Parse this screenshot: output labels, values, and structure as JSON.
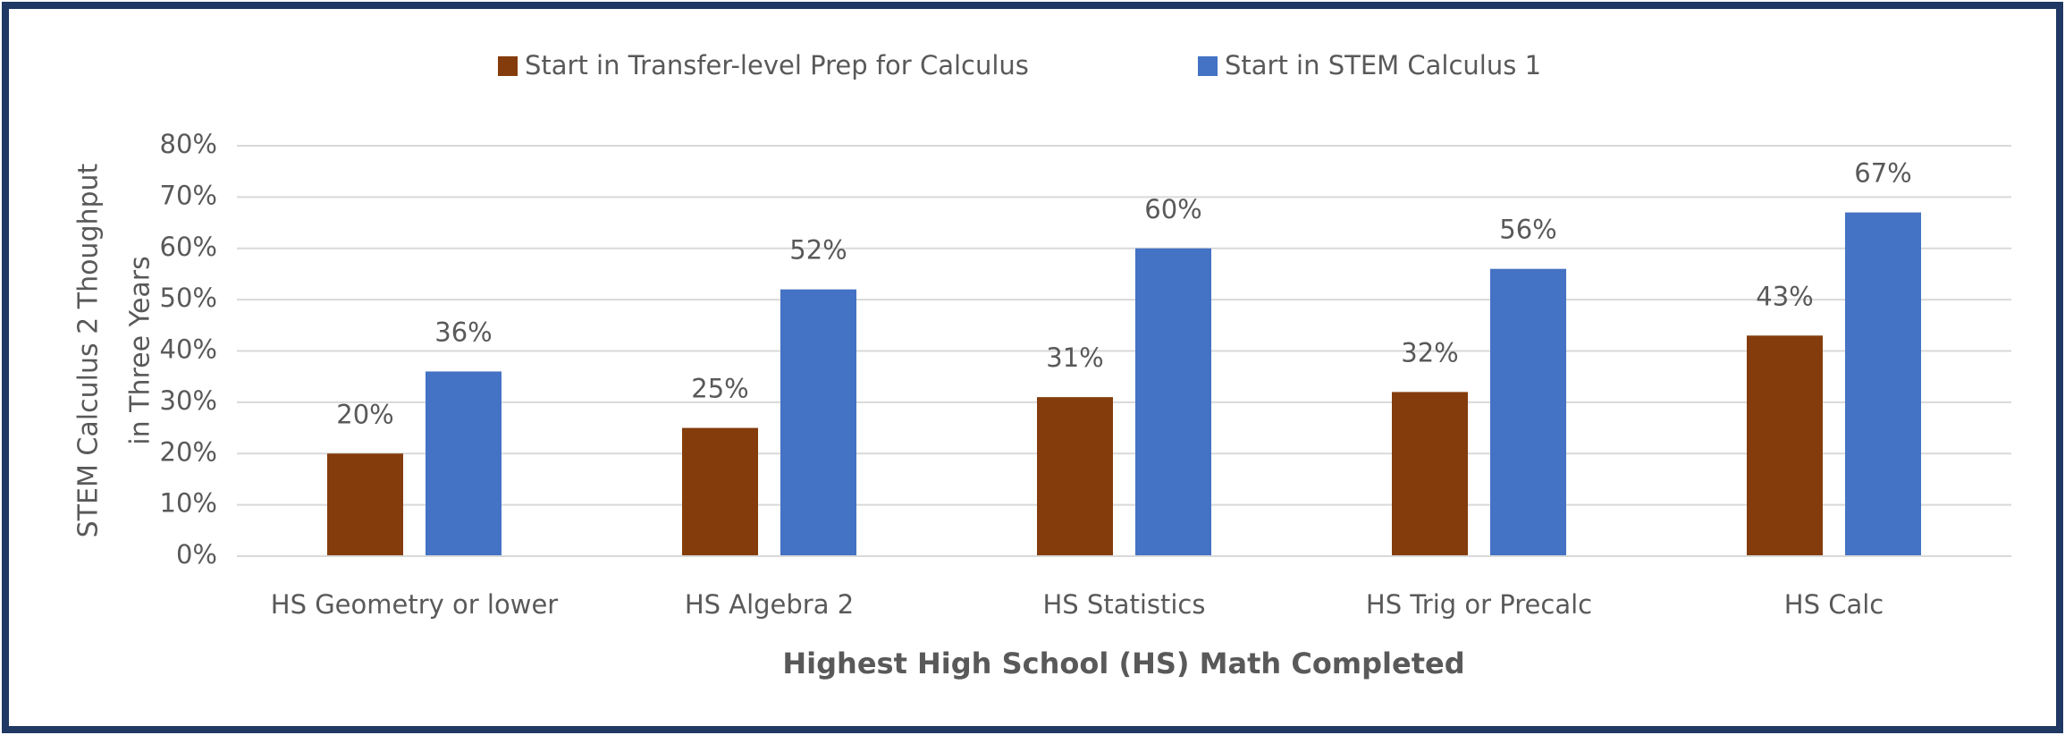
{
  "chart_data": {
    "type": "bar",
    "xlabel": "Highest High School (HS) Math Completed",
    "ylabel": [
      "STEM Calculus 2 Thoughput",
      "in Three Years"
    ],
    "categories": [
      "HS Geometry or lower",
      "HS Algebra 2",
      "HS Statistics",
      "HS Trig or Precalc",
      "HS Calc"
    ],
    "series": [
      {
        "name": "Start in Transfer-level Prep for Calculus",
        "color": "#843c0c",
        "values": [
          20,
          25,
          31,
          32,
          43
        ],
        "value_labels": [
          "20%",
          "25%",
          "31%",
          "32%",
          "43%"
        ]
      },
      {
        "name": "Start in STEM Calculus 1",
        "color": "#4472c4",
        "values": [
          36,
          52,
          60,
          56,
          67
        ],
        "value_labels": [
          "36%",
          "52%",
          "60%",
          "56%",
          "67%"
        ]
      }
    ],
    "ylim": [
      0,
      80
    ],
    "yticks": [
      {
        "value": 0,
        "label": "0%"
      },
      {
        "value": 10,
        "label": "10%"
      },
      {
        "value": 20,
        "label": "20%"
      },
      {
        "value": 30,
        "label": "30%"
      },
      {
        "value": 40,
        "label": "40%"
      },
      {
        "value": 50,
        "label": "50%"
      },
      {
        "value": 60,
        "label": "60%"
      },
      {
        "value": 70,
        "label": "70%"
      },
      {
        "value": 80,
        "label": "80%"
      }
    ],
    "grid": true,
    "legend": "top"
  }
}
